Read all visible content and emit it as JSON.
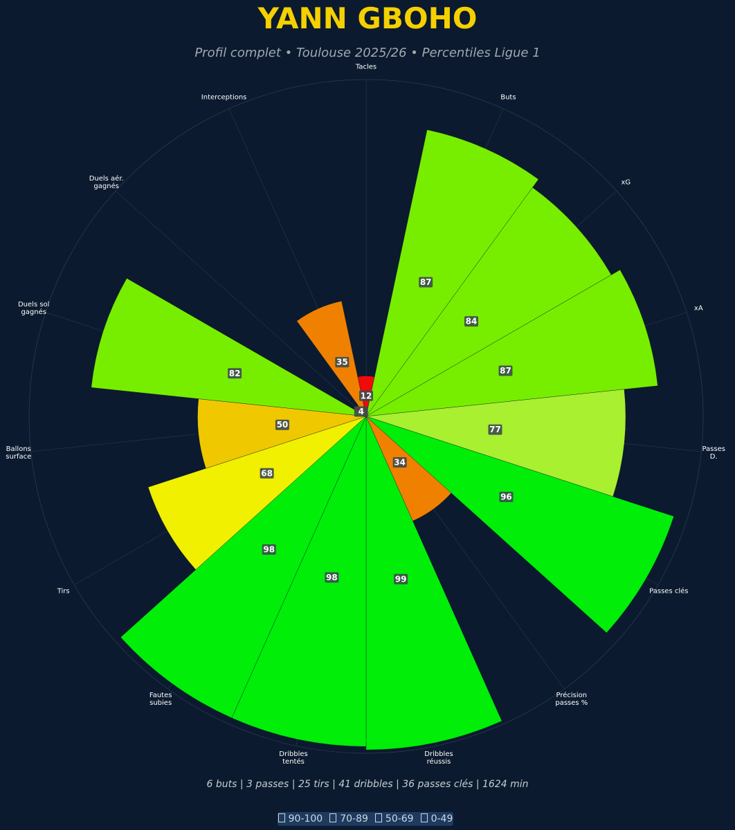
{
  "chart_data": {
    "type": "polar_bar",
    "title": "YANN GBOHO",
    "subtitle": "Profil complet • Toulouse 2025/26 • Percentiles Ligue 1",
    "categories": [
      "Tacles",
      "Buts",
      "xG",
      "xA",
      "Passes D.",
      "Passes clés",
      "Précision\npasses %",
      "Dribbles\nréussis",
      "Dribbles\ntentés",
      "Fautes\nsubies",
      "Tirs",
      "Ballons\nsurface",
      "Duels sol\ngagnés",
      "Duels aér.\ngagnés",
      "Interceptions"
    ],
    "values": [
      12,
      87,
      84,
      87,
      77,
      96,
      34,
      99,
      98,
      98,
      68,
      50,
      82,
      4,
      35
    ],
    "colors": [
      "#f00a0a",
      "#77ee00",
      "#77ee00",
      "#77ee00",
      "#a8f030",
      "#00ee08",
      "#f08000",
      "#00ee08",
      "#00ee08",
      "#00ee08",
      "#f0f000",
      "#f0c800",
      "#77ee00",
      "#f00a0a",
      "#f08000"
    ],
    "ylim": [
      0,
      100
    ],
    "footer": "6 buts | 3 passes | 25 tirs | 41 dribbles | 36 passes clés | 1624 min",
    "legend": [
      "90-100",
      "70-89",
      "50-69",
      "0-49"
    ]
  }
}
